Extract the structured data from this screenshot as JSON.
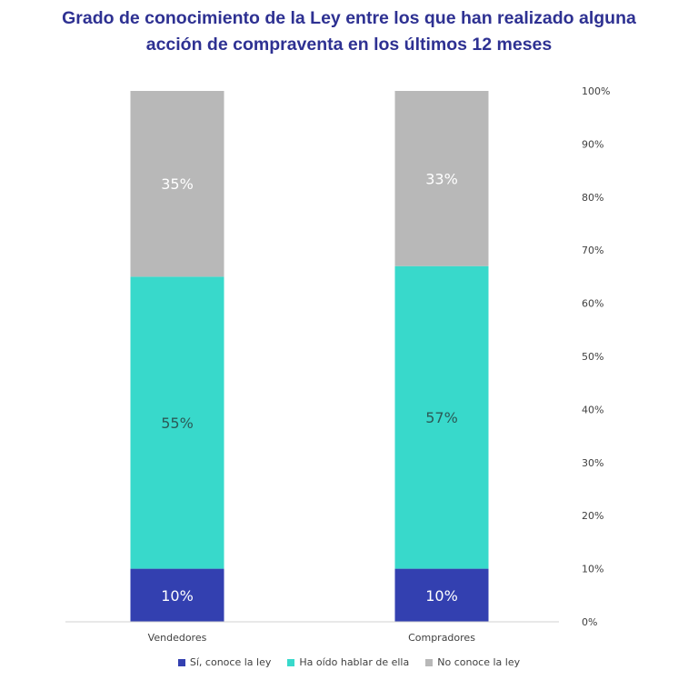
{
  "chart_data": {
    "type": "bar",
    "stacked": true,
    "title_line1": "Grado de conocimiento de la Ley entre los que han realizado alguna",
    "title_line2": "acción de compraventa en los últimos 12 meses",
    "categories": [
      "Vendedores",
      "Compradores"
    ],
    "series": [
      {
        "name": "Sí, conoce la ley",
        "values": [
          10,
          10
        ],
        "labels": [
          "10%",
          "10%"
        ],
        "color": "#3340b0"
      },
      {
        "name": "Ha oído hablar de ella",
        "values": [
          55,
          57
        ],
        "labels": [
          "55%",
          "57%"
        ],
        "color": "#38d9cb"
      },
      {
        "name": "No conoce la ley",
        "values": [
          35,
          33
        ],
        "labels": [
          "35%",
          "33%"
        ],
        "color": "#b8b8b8"
      }
    ],
    "ylim": [
      0,
      100
    ],
    "yticks": [
      "0%",
      "10%",
      "20%",
      "30%",
      "40%",
      "50%",
      "60%",
      "70%",
      "80%",
      "90%",
      "100%"
    ],
    "y_axis_position": "right",
    "grid": false,
    "legend_position": "bottom"
  }
}
